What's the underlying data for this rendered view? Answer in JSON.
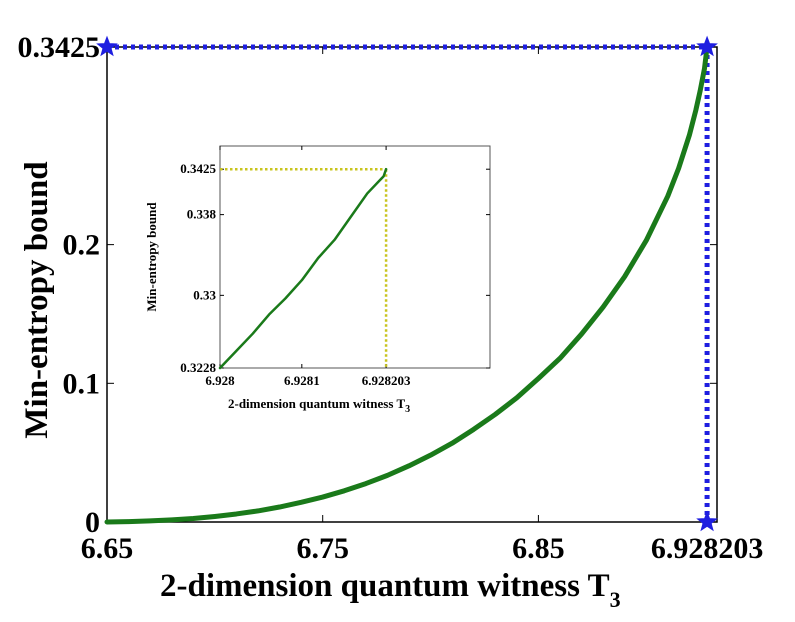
{
  "chart_data": [
    {
      "type": "line",
      "name": "main",
      "title": "",
      "xlabel": "2-dimension quantum witness T",
      "xlabel_sub": "3",
      "ylabel": "Min-entropy bound",
      "xlim": [
        6.65,
        6.9328
      ],
      "ylim": [
        0,
        0.3425
      ],
      "xticks": [
        6.65,
        6.75,
        6.85,
        6.928203
      ],
      "xtick_labels": [
        "6.65",
        "6.75",
        "6.85",
        "6.928203"
      ],
      "yticks": [
        0,
        0.1,
        0.2,
        0.3425
      ],
      "ytick_labels": [
        "0",
        "0.1",
        "0.2",
        "0.3425"
      ],
      "series": [
        {
          "name": "min-entropy bound",
          "color": "#1a7a1a",
          "x": [
            6.65,
            6.66,
            6.67,
            6.68,
            6.69,
            6.7,
            6.71,
            6.72,
            6.73,
            6.74,
            6.75,
            6.76,
            6.77,
            6.78,
            6.79,
            6.8,
            6.81,
            6.82,
            6.83,
            6.84,
            6.85,
            6.86,
            6.87,
            6.88,
            6.89,
            6.9,
            6.91,
            6.915,
            6.92,
            6.923,
            6.925,
            6.927,
            6.928203
          ],
          "y": [
            0.0,
            0.0003,
            0.0008,
            0.0015,
            0.0025,
            0.004,
            0.0058,
            0.008,
            0.0108,
            0.0142,
            0.018,
            0.0225,
            0.0277,
            0.0336,
            0.0405,
            0.0482,
            0.0568,
            0.0668,
            0.0776,
            0.0896,
            0.1035,
            0.118,
            0.1355,
            0.155,
            0.177,
            0.203,
            0.235,
            0.255,
            0.279,
            0.297,
            0.311,
            0.327,
            0.3425
          ]
        }
      ],
      "markers": [
        {
          "x": 6.65,
          "y": 0.3425,
          "color": "#1f1fe0",
          "shape": "star"
        },
        {
          "x": 6.928203,
          "y": 0.3425,
          "color": "#1f1fe0",
          "shape": "star"
        },
        {
          "x": 6.928203,
          "y": 0,
          "color": "#1f1fe0",
          "shape": "star"
        }
      ],
      "guide_lines": {
        "color": "#1f1fe0",
        "style": "dotted"
      }
    },
    {
      "type": "line",
      "name": "inset",
      "title": "",
      "xlabel": "2-dimension quantum witness T",
      "xlabel_sub": "3",
      "ylabel": "Min-entropy bound",
      "xlim": [
        6.928,
        6.92833
      ],
      "ylim": [
        0.3228,
        0.3448
      ],
      "xticks": [
        6.928,
        6.9281,
        6.928203
      ],
      "xtick_labels": [
        "6.928",
        "6.9281",
        "6.928203"
      ],
      "yticks": [
        0.3228,
        0.33,
        0.338,
        0.3425
      ],
      "ytick_labels": [
        "0.3228",
        "0.33",
        "0.338",
        "0.3425"
      ],
      "series": [
        {
          "name": "min-entropy bound (zoom)",
          "color": "#1a7a1a",
          "x": [
            6.928,
            6.92802,
            6.92804,
            6.92806,
            6.92808,
            6.9281,
            6.92812,
            6.92814,
            6.92816,
            6.92818,
            6.9282,
            6.928203
          ],
          "y": [
            0.3228,
            0.3245,
            0.3262,
            0.3281,
            0.3297,
            0.3315,
            0.3337,
            0.3355,
            0.3378,
            0.3401,
            0.3418,
            0.3425
          ]
        }
      ],
      "guide_lines": {
        "color": "#c8c41e",
        "style": "dotted"
      }
    }
  ]
}
